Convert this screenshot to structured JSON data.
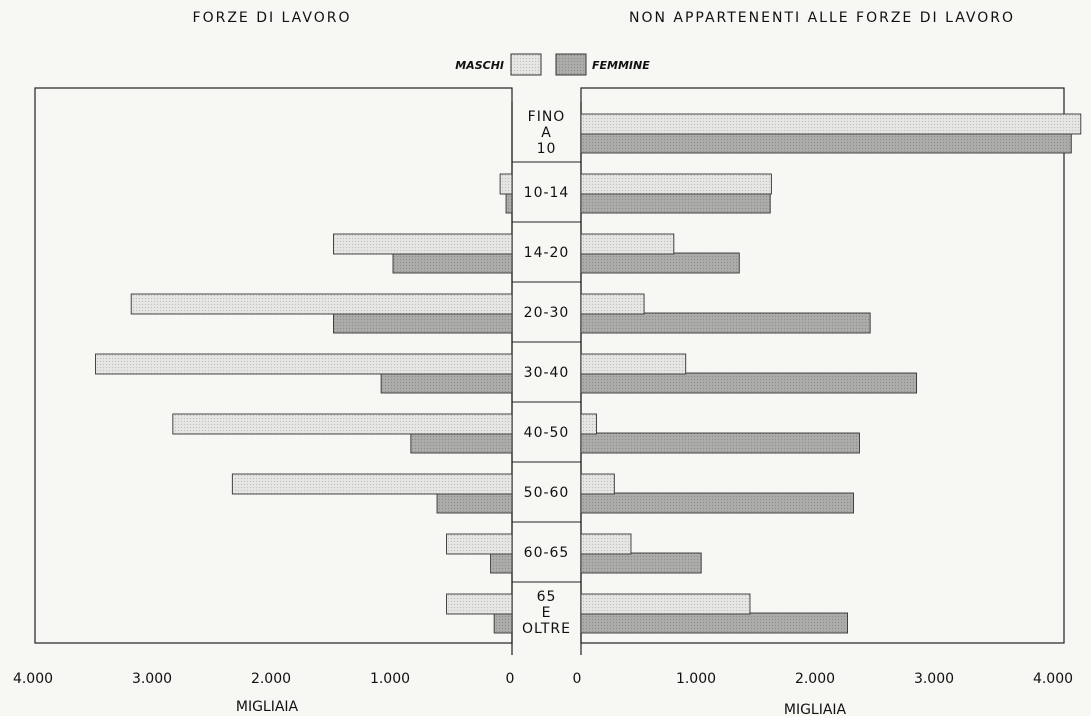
{
  "colors": {
    "maschi": "#e4e4e2",
    "femmine": "#a9a9a7",
    "frame": "#222222"
  },
  "chart_data": {
    "type": "bar",
    "orientation": "horizontal-back-to-back",
    "left_title": "FORZE DI LAVORO",
    "right_title": "NON APPARTENENTI ALLE FORZE DI LAVORO",
    "left_xlabel": "MIGLIAIA",
    "right_xlabel": "MIGLIAIA",
    "xlim": [
      0,
      4000
    ],
    "left_ticks": [
      "4.000",
      "3.000",
      "2.000",
      "1.000",
      "0"
    ],
    "right_ticks": [
      "0",
      "1.000",
      "2.000",
      "3.000",
      "4.000"
    ],
    "legend": {
      "position": "top-center",
      "maschi": "MASCHI",
      "femmine": "FEMMINE"
    },
    "categories": [
      [
        "FINO",
        "A",
        "10"
      ],
      [
        "10-14"
      ],
      [
        "14-20"
      ],
      [
        "20-30"
      ],
      [
        "30-40"
      ],
      [
        "40-50"
      ],
      [
        "50-60"
      ],
      [
        "60-65"
      ],
      [
        "65",
        "E",
        "OLTRE"
      ]
    ],
    "left_series": [
      {
        "name": "MASCHI",
        "values": [
          0,
          100,
          1500,
          3200,
          3500,
          2850,
          2350,
          550,
          550
        ]
      },
      {
        "name": "FEMMINE",
        "values": [
          0,
          50,
          1000,
          1500,
          1100,
          850,
          630,
          180,
          150
        ]
      }
    ],
    "right_series": [
      {
        "name": "MASCHI",
        "values": [
          4200,
          1600,
          780,
          530,
          880,
          130,
          280,
          420,
          1420
        ]
      },
      {
        "name": "FEMMINE",
        "values": [
          4120,
          1590,
          1330,
          2430,
          2820,
          2340,
          2290,
          1010,
          2240
        ]
      }
    ]
  }
}
